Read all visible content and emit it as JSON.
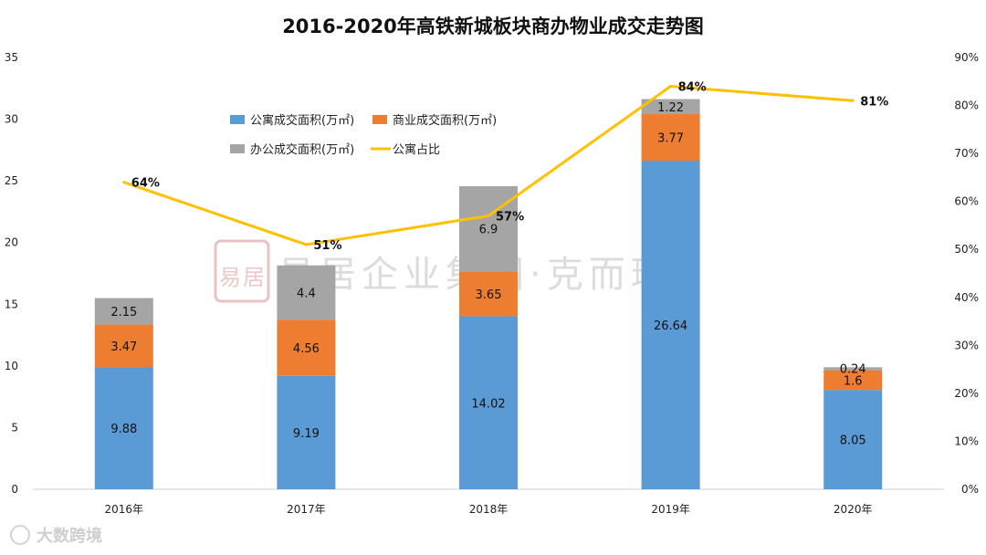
{
  "chart_data": {
    "type": "bar",
    "stacked": true,
    "title": "2016-2020年高铁新城板块商办物业成交走势图",
    "categories": [
      "2016年",
      "2017年",
      "2018年",
      "2019年",
      "2020年"
    ],
    "y_left": {
      "range": [
        0,
        35
      ],
      "ticks": [
        "0",
        "5",
        "10",
        "15",
        "20",
        "25",
        "30",
        "35"
      ]
    },
    "y_right": {
      "range": [
        0,
        0.9
      ],
      "ticks": [
        "0%",
        "10%",
        "20%",
        "30%",
        "40%",
        "50%",
        "60%",
        "70%",
        "80%",
        "90%"
      ]
    },
    "series": [
      {
        "name": "公寓成交面积(万㎡)",
        "kind": "bar",
        "color": "#5b9bd5",
        "values": [
          9.88,
          9.19,
          14.02,
          26.64,
          8.05
        ],
        "labels": [
          "9.88",
          "9.19",
          "14.02",
          "26.64",
          "8.05"
        ]
      },
      {
        "name": "商业成交面积(万㎡)",
        "kind": "bar",
        "color": "#ed7d31",
        "values": [
          3.47,
          4.56,
          3.65,
          3.77,
          1.6
        ],
        "labels": [
          "3.47",
          "4.56",
          "3.65",
          "3.77",
          "1.6"
        ]
      },
      {
        "name": "办公成交面积(万㎡)",
        "kind": "bar",
        "color": "#a5a5a5",
        "values": [
          2.15,
          4.4,
          6.9,
          1.22,
          0.24
        ],
        "labels": [
          "2.15",
          "4.4",
          "6.9",
          "1.22",
          "0.24"
        ]
      },
      {
        "name": "公寓占比",
        "kind": "line",
        "axis": "right",
        "color": "#ffc000",
        "values": [
          0.64,
          0.51,
          0.57,
          0.84,
          0.81
        ],
        "labels": [
          "64%",
          "51%",
          "57%",
          "84%",
          "81%"
        ]
      }
    ],
    "legend_position": "top-left inside plot",
    "grid": false
  },
  "watermark": {
    "center_text": "易居企业集团·克而瑞",
    "seal_text": "易居",
    "corner_text": "大数跨境"
  }
}
